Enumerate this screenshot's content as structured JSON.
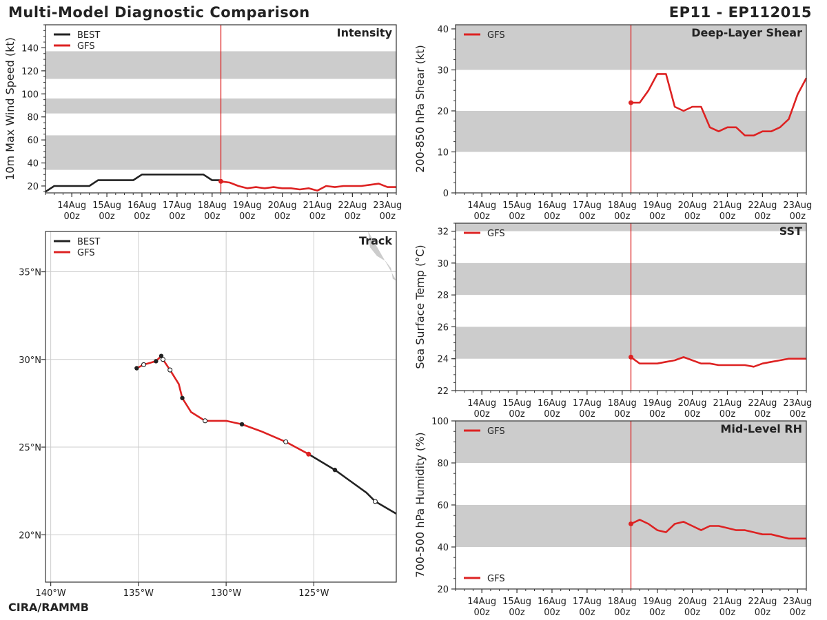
{
  "header": {
    "title": "Multi-Model Diagnostic Comparison",
    "storm_id": "EP11 - EP112015",
    "credit": "CIRA/RAMMB"
  },
  "colors": {
    "best": "#222222",
    "gfs": "#dd2222",
    "band": "#cccccc",
    "grid": "#cccccc",
    "land": "#cccccc",
    "vline": "#dd2222"
  },
  "time_axis": {
    "labels": [
      "14Aug\n00z",
      "15Aug\n00z",
      "16Aug\n00z",
      "17Aug\n00z",
      "18Aug\n00z",
      "19Aug\n00z",
      "20Aug\n00z",
      "21Aug\n00z",
      "22Aug\n00z",
      "23Aug\n00z"
    ]
  },
  "chart_data": [
    {
      "id": "intensity",
      "type": "line",
      "panel_title": "Intensity",
      "ylabel": "10m Max Wind Speed (kt)",
      "ylim": [
        14,
        160
      ],
      "xlim": [
        -0.75,
        9.25
      ],
      "yticks": [
        20,
        40,
        60,
        80,
        100,
        120,
        140
      ],
      "bands": [
        [
          34,
          64
        ],
        [
          83,
          96
        ],
        [
          113,
          137
        ]
      ],
      "vline": 4.25,
      "legend": [
        "BEST",
        "GFS"
      ],
      "series": [
        {
          "name": "BEST",
          "x": [
            -0.75,
            -0.5,
            -0.25,
            0,
            0.25,
            0.5,
            0.75,
            1.0,
            1.25,
            1.5,
            1.75,
            2.0,
            2.25,
            2.5,
            2.75,
            3.0,
            3.25,
            3.5,
            3.75,
            4.0,
            4.25
          ],
          "y": [
            15,
            20,
            20,
            20,
            20,
            20,
            25,
            25,
            25,
            25,
            25,
            30,
            30,
            30,
            30,
            30,
            30,
            30,
            30,
            25,
            25
          ]
        },
        {
          "name": "GFS",
          "x": [
            4.25,
            4.5,
            4.75,
            5.0,
            5.25,
            5.5,
            5.75,
            6.0,
            6.25,
            6.5,
            6.75,
            7.0,
            7.25,
            7.5,
            7.75,
            8.0,
            8.25,
            8.5,
            8.75,
            9.0,
            9.25
          ],
          "y": [
            24,
            23,
            20,
            18,
            19,
            18,
            19,
            18,
            18,
            17,
            18,
            16,
            20,
            19,
            20,
            20,
            20,
            21,
            22,
            19,
            19
          ]
        }
      ]
    },
    {
      "id": "shear",
      "type": "line",
      "panel_title": "Deep-Layer Shear",
      "ylabel": "200-850 hPa Shear (kt)",
      "ylim": [
        0,
        41
      ],
      "xlim": [
        -0.75,
        9.25
      ],
      "yticks": [
        0,
        10,
        20,
        30,
        40
      ],
      "bands": [
        [
          10,
          20
        ],
        [
          30,
          41
        ]
      ],
      "vline": 4.25,
      "legend": [
        "GFS"
      ],
      "series": [
        {
          "name": "GFS",
          "x": [
            4.25,
            4.5,
            4.75,
            5.0,
            5.25,
            5.5,
            5.75,
            6.0,
            6.25,
            6.5,
            6.75,
            7.0,
            7.25,
            7.5,
            7.75,
            8.0,
            8.25,
            8.5,
            8.75,
            9.0,
            9.25
          ],
          "y": [
            22,
            22,
            25,
            29,
            29,
            21,
            20,
            21,
            21,
            16,
            15,
            16,
            16,
            14,
            14,
            15,
            15,
            16,
            18,
            24,
            28
          ]
        }
      ]
    },
    {
      "id": "sst",
      "type": "line",
      "panel_title": "SST",
      "ylabel": "Sea Surface Temp (°C)",
      "ylim": [
        22,
        32.5
      ],
      "xlim": [
        -0.75,
        9.25
      ],
      "yticks": [
        22,
        24,
        26,
        28,
        30,
        32
      ],
      "bands": [
        [
          24,
          26
        ],
        [
          28,
          30
        ],
        [
          32,
          32.5
        ]
      ],
      "vline": 4.25,
      "legend": [
        "GFS"
      ],
      "series": [
        {
          "name": "GFS",
          "x": [
            4.25,
            4.5,
            4.75,
            5.0,
            5.25,
            5.5,
            5.75,
            6.0,
            6.25,
            6.5,
            6.75,
            7.0,
            7.25,
            7.5,
            7.75,
            8.0,
            8.25,
            8.5,
            8.75,
            9.0,
            9.25
          ],
          "y": [
            24.1,
            23.7,
            23.7,
            23.7,
            23.8,
            23.9,
            24.1,
            23.9,
            23.7,
            23.7,
            23.6,
            23.6,
            23.6,
            23.6,
            23.5,
            23.7,
            23.8,
            23.9,
            24.0,
            24.0,
            24.0
          ]
        }
      ]
    },
    {
      "id": "rh",
      "type": "line",
      "panel_title": "Mid-Level RH",
      "ylabel": "700-500 hPa Humidity (%)",
      "ylim": [
        20,
        100
      ],
      "xlim": [
        -0.75,
        9.25
      ],
      "yticks": [
        20,
        40,
        60,
        80,
        100
      ],
      "bands": [
        [
          40,
          60
        ],
        [
          80,
          100
        ]
      ],
      "vline": 4.25,
      "legend": [
        "GFS"
      ],
      "series": [
        {
          "name": "GFS",
          "x": [
            4.25,
            4.5,
            4.75,
            5.0,
            5.25,
            5.5,
            5.75,
            6.0,
            6.25,
            6.5,
            6.75,
            7.0,
            7.25,
            7.5,
            7.75,
            8.0,
            8.25,
            8.5,
            8.75,
            9.0,
            9.25
          ],
          "y": [
            51,
            53,
            51,
            48,
            47,
            51,
            52,
            50,
            48,
            50,
            50,
            49,
            48,
            48,
            47,
            46,
            46,
            45,
            44,
            44,
            44
          ]
        }
      ]
    },
    {
      "id": "track",
      "type": "line",
      "panel_title": "Track",
      "xlim": [
        -140.3,
        -120.3
      ],
      "ylim": [
        17.3,
        37.3
      ],
      "xticks": [
        -140,
        -135,
        -130,
        -125
      ],
      "xtick_labels": [
        "140°W",
        "135°W",
        "130°W",
        "125°W"
      ],
      "yticks": [
        20,
        25,
        30,
        35
      ],
      "ytick_labels": [
        "20°N",
        "25°N",
        "30°N",
        "35°N"
      ],
      "legend": [
        "BEST",
        "GFS"
      ],
      "series": [
        {
          "name": "BEST",
          "lon": [
            -120.3,
            -121.5,
            -122.0,
            -123.8,
            -125.3
          ],
          "lat": [
            21.2,
            21.9,
            22.4,
            23.7,
            24.6
          ],
          "filled": [
            false,
            false,
            false,
            true,
            false
          ],
          "open": [
            false,
            true,
            false,
            false,
            false
          ]
        },
        {
          "name": "GFS",
          "lon": [
            -125.3,
            -126.6,
            -128.0,
            -129.1,
            -130.0,
            -131.2,
            -132.0,
            -132.5,
            -132.7,
            -133.2,
            -133.6,
            -133.7,
            -134.0,
            -134.7,
            -135.1
          ],
          "lat": [
            24.6,
            25.3,
            25.9,
            26.3,
            26.5,
            26.5,
            27.0,
            27.8,
            28.6,
            29.4,
            30.0,
            30.2,
            29.9,
            29.7,
            29.5
          ],
          "filled": [
            false,
            false,
            false,
            true,
            false,
            false,
            false,
            true,
            false,
            false,
            false,
            true,
            true,
            false,
            true
          ],
          "open": [
            false,
            true,
            false,
            false,
            false,
            true,
            false,
            false,
            false,
            true,
            true,
            false,
            false,
            true,
            false
          ]
        }
      ],
      "land": {
        "lon": [
          -120.3,
          -120.3,
          -121.9,
          -121.8,
          -121.4,
          -120.9,
          -120.6,
          -120.5,
          -120.3
        ],
        "lat": [
          37.3,
          34.5,
          37.3,
          36.4,
          35.9,
          35.6,
          35.2,
          34.6,
          34.5
        ]
      }
    }
  ]
}
